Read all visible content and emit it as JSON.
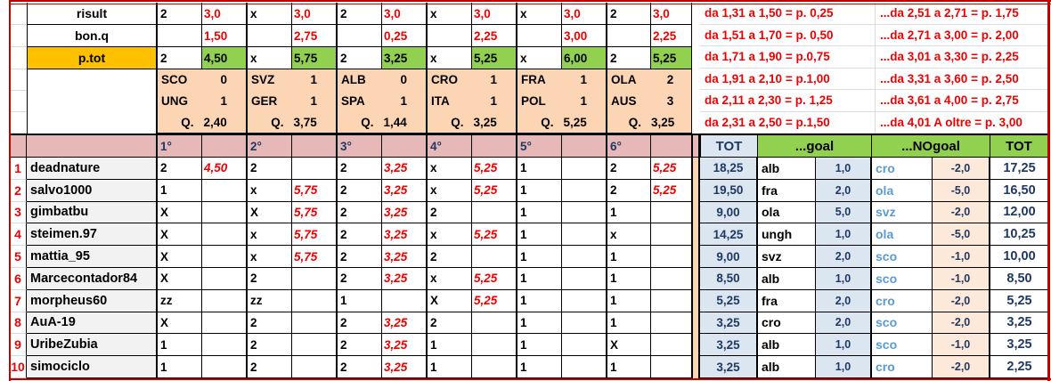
{
  "colors": {
    "border_red": "#c00000",
    "red_text": "#f00000",
    "navy_text": "#1f3864",
    "blue_team_text": "#5b9bd5",
    "green": "#92d050",
    "orange": "#ffc000",
    "peach": "#fcd5b4",
    "light_peach": "#fde9d9",
    "pink_header": "#e6b8b7",
    "light_blue": "#dce6f1",
    "name_gray": "#f2f2f2"
  },
  "top": {
    "rows": [
      {
        "label": "risult",
        "cells": [
          "2",
          "3,0",
          "x",
          "3,0",
          "2",
          "3,0",
          "x",
          "3,0",
          "x",
          "3,0",
          "2",
          "3,0"
        ]
      },
      {
        "label": "bon.q",
        "cells": [
          "",
          "1,50",
          "",
          "2,75",
          "",
          "0,25",
          "",
          "2,25",
          "",
          "3,00",
          "",
          "2,25"
        ]
      },
      {
        "label": "p.tot",
        "cells": [
          "2",
          "4,50",
          "x",
          "5,75",
          "2",
          "3,25",
          "x",
          "5,25",
          "x",
          "6,00",
          "2",
          "5,25"
        ]
      }
    ],
    "matches": [
      {
        "home": "SCO",
        "home_score": "0",
        "away": "UNG",
        "away_score": "1",
        "q_label": "Q.",
        "q_value": "2,40"
      },
      {
        "home": "SVZ",
        "home_score": "1",
        "away": "GER",
        "away_score": "1",
        "q_label": "Q.",
        "q_value": "3,75"
      },
      {
        "home": "ALB",
        "home_score": "0",
        "away": "SPA",
        "away_score": "1",
        "q_label": "Q.",
        "q_value": "1,44"
      },
      {
        "home": "CRO",
        "home_score": "1",
        "away": "ITA",
        "away_score": "1",
        "q_label": "Q.",
        "q_value": "3,25"
      },
      {
        "home": "FRA",
        "home_score": "1",
        "away": "POL",
        "away_score": "1",
        "q_label": "Q.",
        "q_value": "5,25"
      },
      {
        "home": "OLA",
        "home_score": "2",
        "away": "AUS",
        "away_score": "3",
        "q_label": "Q.",
        "q_value": "3,25"
      }
    ]
  },
  "rules": {
    "left": [
      "da 1,31 a 1,50 = p. 0,25",
      "da 1,51 a 1,70 = p. 0,50",
      "da 1,71 a 1,90 = p.0,75",
      "da 1,91 a 2,10  = p.1,00",
      "da 2,11 a 2,30 = p. 1,25",
      "da 2,31 a 2,50 = p.1,50"
    ],
    "right": [
      "...da 2,51 a 2,71 = p. 1,75",
      "...da 2,71 a 3,00 = p. 2,00",
      "...da 3,01 a 3,30 = p. 2,25",
      "...da 3,31 a 3,60 = p. 2,50",
      "...da 3,61 a 4,00 = p. 2,75",
      "...da 4,01 A oltre = p. 3,00"
    ]
  },
  "header": {
    "cols": [
      "1°",
      "2°",
      "3°",
      "4°",
      "5°",
      "6°"
    ],
    "tot": "TOT",
    "goal": "...goal",
    "nogoal": "...NOgoal",
    "tot2": "TOT"
  },
  "players": [
    {
      "rank": "1",
      "name": "deadnature",
      "picks": [
        {
          "sign": "2",
          "score": "4,50"
        },
        {
          "sign": "2",
          "score": ""
        },
        {
          "sign": "2",
          "score": "3,25"
        },
        {
          "sign": "x",
          "score": "5,25"
        },
        {
          "sign": "1",
          "score": ""
        },
        {
          "sign": "2",
          "score": "5,25"
        }
      ],
      "tot": "18,25",
      "goal_team": "alb",
      "goal_val": "1,0",
      "nogoal_team": "cro",
      "nogoal_val": "-2,0",
      "tot2": "17,25"
    },
    {
      "rank": "2",
      "name": "salvo1000",
      "picks": [
        {
          "sign": "1",
          "score": ""
        },
        {
          "sign": "x",
          "score": "5,75"
        },
        {
          "sign": "2",
          "score": "3,25"
        },
        {
          "sign": "x",
          "score": "5,25"
        },
        {
          "sign": "1",
          "score": ""
        },
        {
          "sign": "2",
          "score": "5,25"
        }
      ],
      "tot": "19,50",
      "goal_team": "fra",
      "goal_val": "2,0",
      "nogoal_team": "ola",
      "nogoal_val": "-5,0",
      "tot2": "16,50"
    },
    {
      "rank": "3",
      "name": "gimbatbu",
      "picks": [
        {
          "sign": "X",
          "score": ""
        },
        {
          "sign": "X",
          "score": "5,75"
        },
        {
          "sign": "2",
          "score": "3,25"
        },
        {
          "sign": "2",
          "score": ""
        },
        {
          "sign": "1",
          "score": ""
        },
        {
          "sign": "1",
          "score": ""
        }
      ],
      "tot": "9,00",
      "goal_team": "ola",
      "goal_val": "5,0",
      "nogoal_team": "svz",
      "nogoal_val": "-2,0",
      "tot2": "12,00"
    },
    {
      "rank": "4",
      "name": "steimen.97",
      "picks": [
        {
          "sign": "X",
          "score": ""
        },
        {
          "sign": "x",
          "score": "5,75"
        },
        {
          "sign": "2",
          "score": "3,25"
        },
        {
          "sign": "x",
          "score": "5,25"
        },
        {
          "sign": "1",
          "score": ""
        },
        {
          "sign": "x",
          "score": ""
        }
      ],
      "tot": "14,25",
      "goal_team": "ungh",
      "goal_val": "1,0",
      "nogoal_team": "ola",
      "nogoal_val": "-5,0",
      "tot2": "10,25"
    },
    {
      "rank": "5",
      "name": "mattia_95",
      "picks": [
        {
          "sign": "X",
          "score": ""
        },
        {
          "sign": "x",
          "score": "5,75"
        },
        {
          "sign": "2",
          "score": "3,25"
        },
        {
          "sign": "2",
          "score": ""
        },
        {
          "sign": "1",
          "score": ""
        },
        {
          "sign": "1",
          "score": ""
        }
      ],
      "tot": "9,00",
      "goal_team": "svz",
      "goal_val": "2,0",
      "nogoal_team": "sco",
      "nogoal_val": "-1,0",
      "tot2": "10,00"
    },
    {
      "rank": "6",
      "name": "Marcecontador84",
      "picks": [
        {
          "sign": "X",
          "score": ""
        },
        {
          "sign": "2",
          "score": ""
        },
        {
          "sign": "2",
          "score": "3,25"
        },
        {
          "sign": "x",
          "score": "5,25"
        },
        {
          "sign": "1",
          "score": ""
        },
        {
          "sign": "1",
          "score": ""
        }
      ],
      "tot": "8,50",
      "goal_team": "alb",
      "goal_val": "1,0",
      "nogoal_team": "sco",
      "nogoal_val": "-1,0",
      "tot2": "8,50"
    },
    {
      "rank": "7",
      "name": "morpheus60",
      "picks": [
        {
          "sign": "zz",
          "score": ""
        },
        {
          "sign": "zz",
          "score": ""
        },
        {
          "sign": "1",
          "score": ""
        },
        {
          "sign": "X",
          "score": "5,25"
        },
        {
          "sign": "1",
          "score": ""
        },
        {
          "sign": "1",
          "score": ""
        }
      ],
      "tot": "5,25",
      "goal_team": "fra",
      "goal_val": "2,0",
      "nogoal_team": "cro",
      "nogoal_val": "-2,0",
      "tot2": "5,25"
    },
    {
      "rank": "8",
      "name": "AuA-19",
      "picks": [
        {
          "sign": "X",
          "score": ""
        },
        {
          "sign": "2",
          "score": ""
        },
        {
          "sign": "2",
          "score": "3,25"
        },
        {
          "sign": "2",
          "score": ""
        },
        {
          "sign": "1",
          "score": ""
        },
        {
          "sign": "1",
          "score": ""
        }
      ],
      "tot": "3,25",
      "goal_team": "cro",
      "goal_val": "2,0",
      "nogoal_team": "sco",
      "nogoal_val": "-2,0",
      "tot2": "3,25"
    },
    {
      "rank": "9",
      "name": "UribeZubia",
      "picks": [
        {
          "sign": "1",
          "score": ""
        },
        {
          "sign": "2",
          "score": ""
        },
        {
          "sign": "2",
          "score": "3,25"
        },
        {
          "sign": "1",
          "score": ""
        },
        {
          "sign": "1",
          "score": ""
        },
        {
          "sign": "X",
          "score": ""
        }
      ],
      "tot": "3,25",
      "goal_team": "alb",
      "goal_val": "1,0",
      "nogoal_team": "sco",
      "nogoal_val": "-1,0",
      "tot2": "3,25"
    },
    {
      "rank": "10",
      "name": "simociclo",
      "picks": [
        {
          "sign": "1",
          "score": ""
        },
        {
          "sign": "2",
          "score": ""
        },
        {
          "sign": "2",
          "score": "3,25"
        },
        {
          "sign": "1",
          "score": ""
        },
        {
          "sign": "1",
          "score": ""
        },
        {
          "sign": "1",
          "score": ""
        }
      ],
      "tot": "3,25",
      "goal_team": "alb",
      "goal_val": "1,0",
      "nogoal_team": "cro",
      "nogoal_val": "-2,0",
      "tot2": "2,25"
    }
  ]
}
